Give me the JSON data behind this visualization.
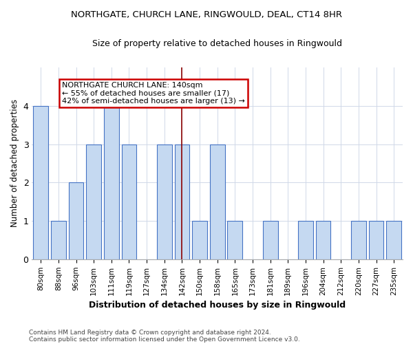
{
  "title": "NORTHGATE, CHURCH LANE, RINGWOULD, DEAL, CT14 8HR",
  "subtitle": "Size of property relative to detached houses in Ringwould",
  "xlabel": "Distribution of detached houses by size in Ringwould",
  "ylabel": "Number of detached properties",
  "categories": [
    "80sqm",
    "88sqm",
    "96sqm",
    "103sqm",
    "111sqm",
    "119sqm",
    "127sqm",
    "134sqm",
    "142sqm",
    "150sqm",
    "158sqm",
    "165sqm",
    "173sqm",
    "181sqm",
    "189sqm",
    "196sqm",
    "204sqm",
    "212sqm",
    "220sqm",
    "227sqm",
    "235sqm"
  ],
  "values": [
    4,
    1,
    2,
    3,
    4,
    3,
    0,
    3,
    3,
    1,
    3,
    1,
    0,
    1,
    0,
    1,
    1,
    0,
    1,
    1,
    1
  ],
  "bar_color": "#c5d9f1",
  "bar_edge_color": "#4472c4",
  "reference_line_index": 8,
  "reference_line_color": "#8b0000",
  "annotation_title": "NORTHGATE CHURCH LANE: 140sqm",
  "annotation_line1": "← 55% of detached houses are smaller (17)",
  "annotation_line2": "42% of semi-detached houses are larger (13) →",
  "annotation_box_color": "#ffffff",
  "annotation_box_edge_color": "#cc0000",
  "ylim": [
    0,
    5
  ],
  "yticks": [
    0,
    1,
    2,
    3,
    4
  ],
  "footer_line1": "Contains HM Land Registry data © Crown copyright and database right 2024.",
  "footer_line2": "Contains public sector information licensed under the Open Government Licence v3.0.",
  "background_color": "#ffffff",
  "grid_color": "#d0d8e8"
}
